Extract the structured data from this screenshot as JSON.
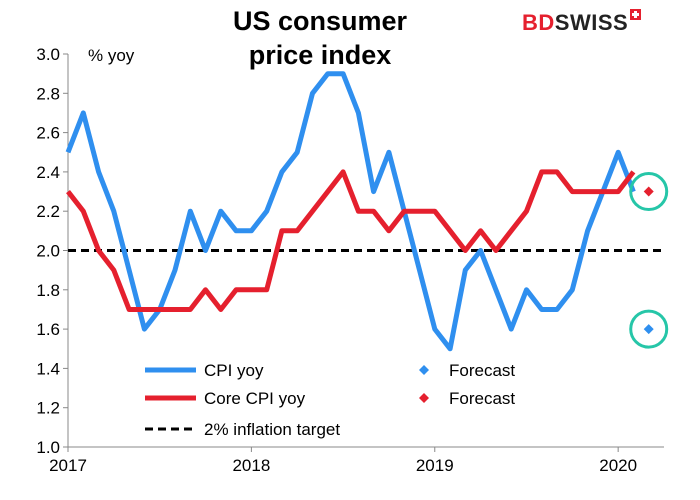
{
  "header": {
    "title_line1": "US consumer",
    "title_line2": "price index",
    "logo_bd": "BD",
    "logo_swiss": "SWISS"
  },
  "colors": {
    "cpi": "#2f8fef",
    "core": "#e5202e",
    "target": "#000000",
    "highlight_circle": "#26c6a8"
  },
  "chart_data": {
    "type": "line",
    "title": "US consumer price index",
    "ylabel": "% yoy",
    "ylim": [
      1.0,
      3.0
    ],
    "y_ticks": [
      "1.0",
      "1.2",
      "1.4",
      "1.6",
      "1.8",
      "2.0",
      "2.2",
      "2.4",
      "2.6",
      "2.8",
      "3.0"
    ],
    "x_ticks": [
      "2017",
      "2018",
      "2019",
      "2020"
    ],
    "x_range": [
      "2017-01",
      "2020-04"
    ],
    "grid": false,
    "legend_position": "bottom-center",
    "series": [
      {
        "name": "CPI yoy",
        "color": "#2f8fef",
        "style": "line",
        "x": [
          "2017-01",
          "2017-02",
          "2017-03",
          "2017-04",
          "2017-05",
          "2017-06",
          "2017-07",
          "2017-08",
          "2017-09",
          "2017-10",
          "2017-11",
          "2017-12",
          "2018-01",
          "2018-02",
          "2018-03",
          "2018-04",
          "2018-05",
          "2018-06",
          "2018-07",
          "2018-08",
          "2018-09",
          "2018-10",
          "2018-11",
          "2018-12",
          "2019-01",
          "2019-02",
          "2019-03",
          "2019-04",
          "2019-05",
          "2019-06",
          "2019-07",
          "2019-08",
          "2019-09",
          "2019-10",
          "2019-11",
          "2019-12",
          "2020-01",
          "2020-02"
        ],
        "y": [
          2.5,
          2.7,
          2.4,
          2.2,
          1.9,
          1.6,
          1.7,
          1.9,
          2.2,
          2.0,
          2.2,
          2.1,
          2.1,
          2.2,
          2.4,
          2.5,
          2.8,
          2.9,
          2.9,
          2.7,
          2.3,
          2.5,
          2.2,
          1.9,
          1.6,
          1.5,
          1.9,
          2.0,
          1.8,
          1.6,
          1.8,
          1.7,
          1.7,
          1.8,
          2.1,
          2.3,
          2.5,
          2.3
        ]
      },
      {
        "name": "Core CPI yoy",
        "color": "#e5202e",
        "style": "line",
        "x": [
          "2017-01",
          "2017-02",
          "2017-03",
          "2017-04",
          "2017-05",
          "2017-06",
          "2017-07",
          "2017-08",
          "2017-09",
          "2017-10",
          "2017-11",
          "2017-12",
          "2018-01",
          "2018-02",
          "2018-03",
          "2018-04",
          "2018-05",
          "2018-06",
          "2018-07",
          "2018-08",
          "2018-09",
          "2018-10",
          "2018-11",
          "2018-12",
          "2019-01",
          "2019-02",
          "2019-03",
          "2019-04",
          "2019-05",
          "2019-06",
          "2019-07",
          "2019-08",
          "2019-09",
          "2019-10",
          "2019-11",
          "2019-12",
          "2020-01",
          "2020-02"
        ],
        "y": [
          2.3,
          2.2,
          2.0,
          1.9,
          1.7,
          1.7,
          1.7,
          1.7,
          1.7,
          1.8,
          1.7,
          1.8,
          1.8,
          1.8,
          2.1,
          2.1,
          2.2,
          2.3,
          2.4,
          2.2,
          2.2,
          2.1,
          2.2,
          2.2,
          2.2,
          2.1,
          2.0,
          2.1,
          2.0,
          2.1,
          2.2,
          2.4,
          2.4,
          2.3,
          2.3,
          2.3,
          2.3,
          2.4
        ]
      },
      {
        "name": "Forecast",
        "color": "#2f8fef",
        "style": "diamond",
        "x": [
          "2020-03"
        ],
        "y": [
          1.6
        ]
      },
      {
        "name": "Forecast",
        "color": "#e5202e",
        "style": "diamond",
        "x": [
          "2020-03"
        ],
        "y": [
          2.3
        ]
      },
      {
        "name": "2% inflation target",
        "color": "#000000",
        "style": "dashed",
        "x": [
          "2017-01",
          "2020-04"
        ],
        "y": [
          2.0,
          2.0
        ]
      }
    ],
    "annotations": [
      "circle around both 2020-03 forecast points"
    ]
  }
}
